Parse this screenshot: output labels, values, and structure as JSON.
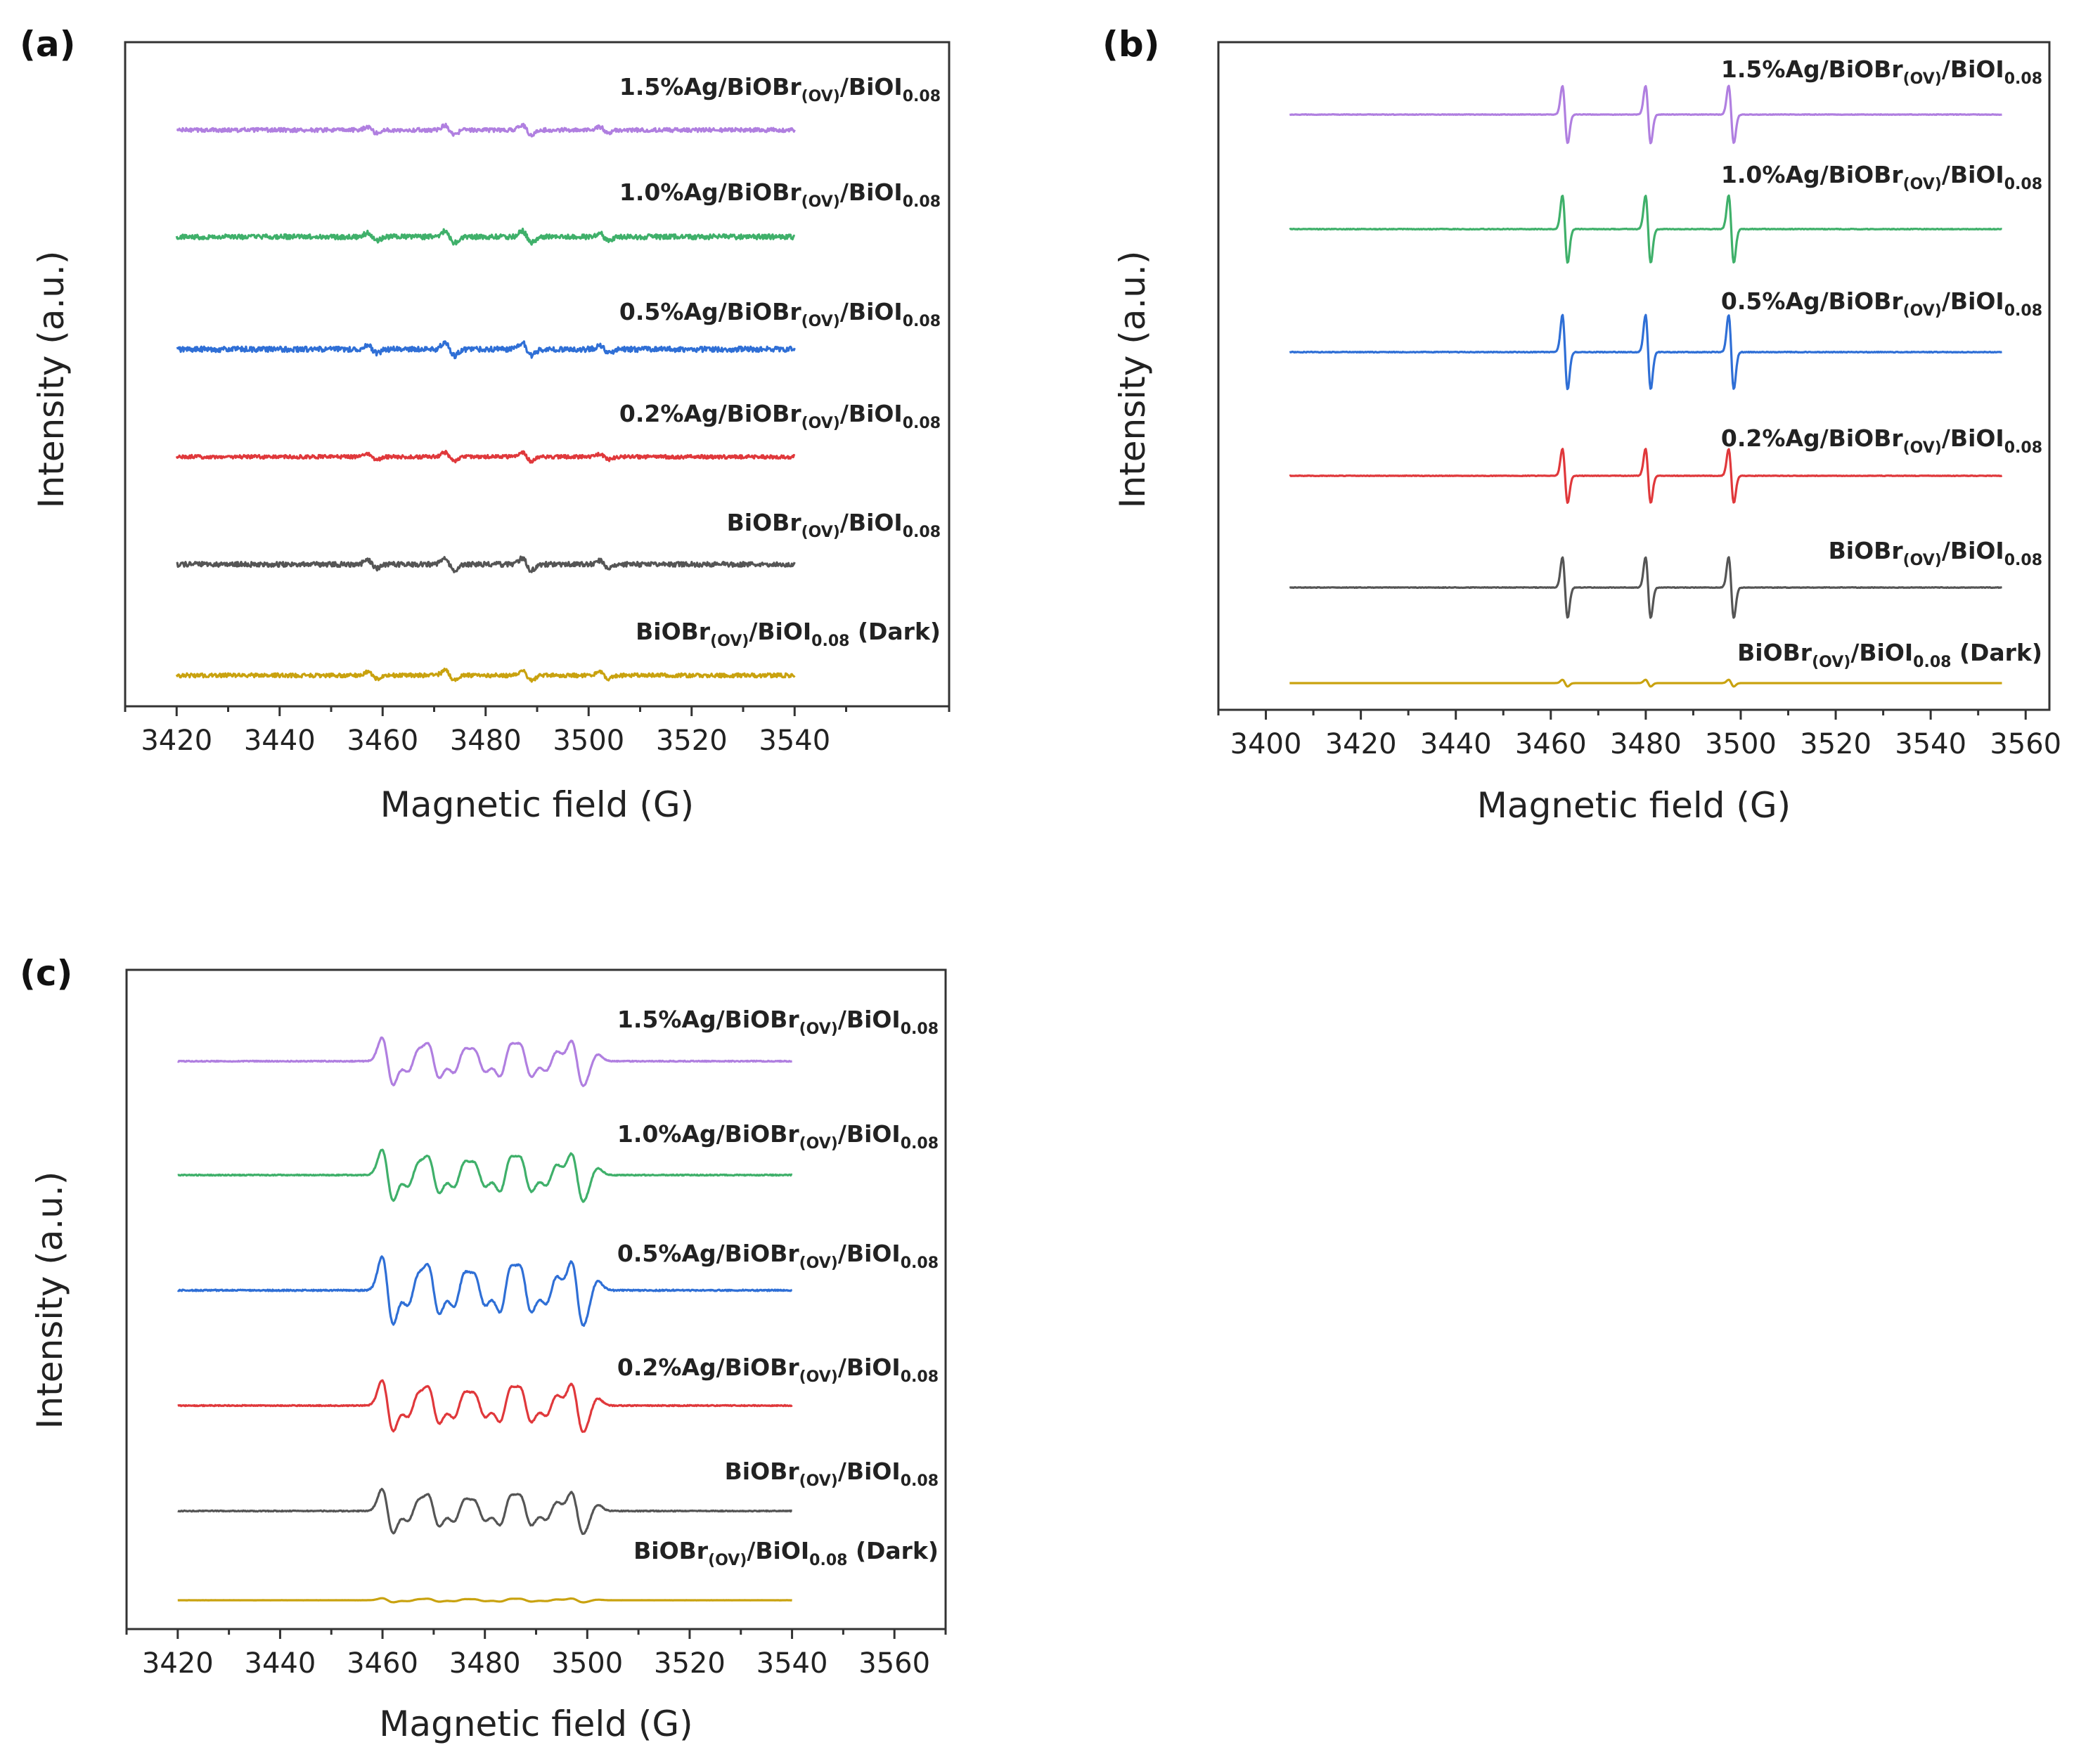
{
  "chart_data": [
    {
      "type": "line",
      "panel": "(a)",
      "xlabel": "Magnetic field (G)",
      "ylabel": "Intensity (a.u.)",
      "xlim": [
        3410,
        3570
      ],
      "xticks": [
        3420,
        3440,
        3460,
        3480,
        3500,
        3520,
        3540
      ],
      "x_range": [
        3420,
        3540
      ],
      "signal": "noise",
      "peaks": [
        3458,
        3473,
        3488,
        3503
      ],
      "series": [
        {
          "name": "1.5%Ag/BiOBr(OV)/BiOI0.08",
          "label_main": "1.5%Ag/BiOBr",
          "label_sub": "(OV)",
          "label_mid": "/BiOI",
          "label_sub2": "0.08",
          "label_suffix": "",
          "color": "#b07fe0",
          "amplitude": 0.9
        },
        {
          "name": "1.0%Ag/BiOBr(OV)/BiOI0.08",
          "label_main": "1.0%Ag/BiOBr",
          "label_sub": "(OV)",
          "label_mid": "/BiOI",
          "label_sub2": "0.08",
          "label_suffix": "",
          "color": "#3fb06a",
          "amplitude": 1.1
        },
        {
          "name": "0.5%Ag/BiOBr(OV)/BiOI0.08",
          "label_main": "0.5%Ag/BiOBr",
          "label_sub": "(OV)",
          "label_mid": "/BiOI",
          "label_sub2": "0.08",
          "label_suffix": "",
          "color": "#2f6fd6",
          "amplitude": 1.2
        },
        {
          "name": "0.2%Ag/BiOBr(OV)/BiOI0.08",
          "label_main": "0.2%Ag/BiOBr",
          "label_sub": "(OV)",
          "label_mid": "/BiOI",
          "label_sub2": "0.08",
          "label_suffix": "",
          "color": "#e0383b",
          "amplitude": 0.8
        },
        {
          "name": "BiOBr(OV)/BiOI0.08",
          "label_main": "BiOBr",
          "label_sub": "(OV)",
          "label_mid": "/BiOI",
          "label_sub2": "0.08",
          "label_suffix": "",
          "color": "#555555",
          "amplitude": 1.1
        },
        {
          "name": "BiOBr(OV)/BiOI0.08 (Dark)",
          "label_main": "BiOBr",
          "label_sub": "(OV)",
          "label_mid": "/BiOI",
          "label_sub2": "0.08",
          "label_suffix": " (Dark)",
          "color": "#c9a20f",
          "amplitude": 0.9
        }
      ]
    },
    {
      "type": "line",
      "panel": "(b)",
      "xlabel": "Magnetic field (G)",
      "ylabel": "Intensity (a.u.)",
      "xlim": [
        3390,
        3565
      ],
      "xticks": [
        3400,
        3420,
        3440,
        3460,
        3480,
        3500,
        3520,
        3540,
        3560
      ],
      "x_range": [
        3405,
        3555
      ],
      "signal": "triplet",
      "peaks": [
        3463,
        3480.5,
        3498
      ],
      "series": [
        {
          "name": "1.5%Ag/BiOBr(OV)/BiOI0.08",
          "label_main": "1.5%Ag/BiOBr",
          "label_sub": "(OV)",
          "label_mid": "/BiOI",
          "label_sub2": "0.08",
          "label_suffix": "",
          "color": "#b07fe0",
          "amplitude": 0.85
        },
        {
          "name": "1.0%Ag/BiOBr(OV)/BiOI0.08",
          "label_main": "1.0%Ag/BiOBr",
          "label_sub": "(OV)",
          "label_mid": "/BiOI",
          "label_sub2": "0.08",
          "label_suffix": "",
          "color": "#3fb06a",
          "amplitude": 1.0
        },
        {
          "name": "0.5%Ag/BiOBr(OV)/BiOI0.08",
          "label_main": "0.5%Ag/BiOBr",
          "label_sub": "(OV)",
          "label_mid": "/BiOI",
          "label_sub2": "0.08",
          "label_suffix": "",
          "color": "#2f6fd6",
          "amplitude": 1.1
        },
        {
          "name": "0.2%Ag/BiOBr(OV)/BiOI0.08",
          "label_main": "0.2%Ag/BiOBr",
          "label_sub": "(OV)",
          "label_mid": "/BiOI",
          "label_sub2": "0.08",
          "label_suffix": "",
          "color": "#e0383b",
          "amplitude": 0.8
        },
        {
          "name": "BiOBr(OV)/BiOI0.08",
          "label_main": "BiOBr",
          "label_sub": "(OV)",
          "label_mid": "/BiOI",
          "label_sub2": "0.08",
          "label_suffix": "",
          "color": "#555555",
          "amplitude": 0.9
        },
        {
          "name": "BiOBr(OV)/BiOI0.08 (Dark)",
          "label_main": "BiOBr",
          "label_sub": "(OV)",
          "label_mid": "/BiOI",
          "label_sub2": "0.08",
          "label_suffix": "  (Dark)",
          "color": "#c9a20f",
          "amplitude": 0.1
        }
      ]
    },
    {
      "type": "line",
      "panel": "(c)",
      "xlabel": "Magnetic field (G)",
      "ylabel": "Intensity (a.u.)",
      "xlim": [
        3410,
        3570
      ],
      "xticks": [
        3420,
        3440,
        3460,
        3480,
        3500,
        3520,
        3540,
        3560
      ],
      "x_range": [
        3420,
        3540
      ],
      "signal": "multiplet",
      "peaks": [
        3461,
        3466,
        3470,
        3475,
        3479,
        3484,
        3488,
        3493,
        3498,
        3501
      ],
      "series": [
        {
          "name": "1.5%Ag/BiOBr(OV)/BiOI0.08",
          "label_main": "1.5%Ag/BiOBr",
          "label_sub": "(OV)",
          "label_mid": "/BiOI",
          "label_sub2": "0.08",
          "label_suffix": "",
          "color": "#b07fe0",
          "amplitude": 0.7
        },
        {
          "name": "1.0%Ag/BiOBr(OV)/BiOI0.08",
          "label_main": "1.0%Ag/BiOBr",
          "label_sub": "(OV)",
          "label_mid": "/BiOI",
          "label_sub2": "0.08",
          "label_suffix": "",
          "color": "#3fb06a",
          "amplitude": 0.75
        },
        {
          "name": "0.5%Ag/BiOBr(OV)/BiOI0.08",
          "label_main": "0.5%Ag/BiOBr",
          "label_sub": "(OV)",
          "label_mid": "/BiOI",
          "label_sub2": "0.08",
          "label_suffix": "",
          "color": "#2f6fd6",
          "amplitude": 1.0
        },
        {
          "name": "0.2%Ag/BiOBr(OV)/BiOI0.08",
          "label_main": "0.2%Ag/BiOBr",
          "label_sub": "(OV)",
          "label_mid": "/BiOI",
          "label_sub2": "0.08",
          "label_suffix": "",
          "color": "#e0383b",
          "amplitude": 0.75
        },
        {
          "name": "BiOBr(OV)/BiOI0.08",
          "label_main": "BiOBr",
          "label_sub": "(OV)",
          "label_mid": "/BiOI",
          "label_sub2": "0.08",
          "label_suffix": "",
          "color": "#555555",
          "amplitude": 0.65
        },
        {
          "name": "BiOBr(OV)/BiOI0.08 (Dark)",
          "label_main": "BiOBr",
          "label_sub": "(OV)",
          "label_mid": "/BiOI",
          "label_sub2": "0.08",
          "label_suffix": "  (Dark)",
          "color": "#c9a20f",
          "amplitude": 0.06
        }
      ]
    }
  ]
}
